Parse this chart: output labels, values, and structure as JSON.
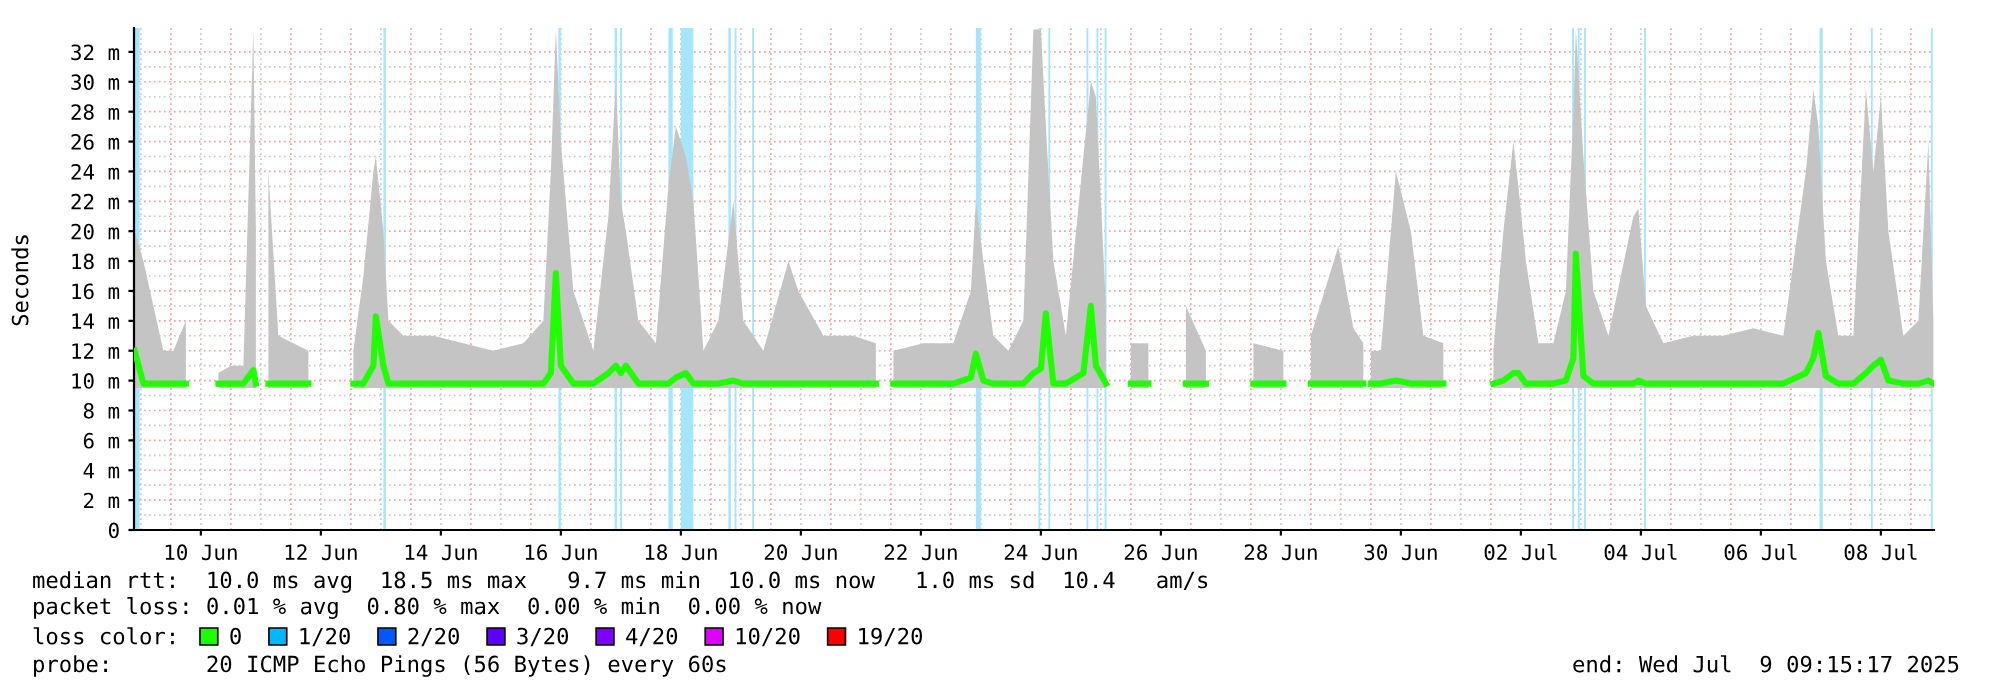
{
  "chart_data": {
    "type": "line",
    "ylabel": "Seconds",
    "xlim": [
      "2025-06-09T09:15",
      "2025-07-09T09:15"
    ],
    "xticks": [
      {
        "value": "2025-06-10T12:00",
        "label": "10 Jun"
      },
      {
        "value": "2025-06-12T12:00",
        "label": "12 Jun"
      },
      {
        "value": "2025-06-14T12:00",
        "label": "14 Jun"
      },
      {
        "value": "2025-06-16T12:00",
        "label": "16 Jun"
      },
      {
        "value": "2025-06-18T12:00",
        "label": "18 Jun"
      },
      {
        "value": "2025-06-20T12:00",
        "label": "20 Jun"
      },
      {
        "value": "2025-06-22T12:00",
        "label": "22 Jun"
      },
      {
        "value": "2025-06-24T12:00",
        "label": "24 Jun"
      },
      {
        "value": "2025-06-26T12:00",
        "label": "26 Jun"
      },
      {
        "value": "2025-06-28T12:00",
        "label": "28 Jun"
      },
      {
        "value": "2025-06-30T12:00",
        "label": "30 Jun"
      },
      {
        "value": "2025-07-02T12:00",
        "label": "02 Jul"
      },
      {
        "value": "2025-07-04T12:00",
        "label": "04 Jul"
      },
      {
        "value": "2025-07-06T12:00",
        "label": "06 Jul"
      },
      {
        "value": "2025-07-08T12:00",
        "label": "08 Jul"
      }
    ],
    "ylim": [
      0,
      33.6
    ],
    "yticks": [
      0,
      {
        "value": 2,
        "label": "2 m"
      },
      {
        "value": 4,
        "label": "4 m"
      },
      {
        "value": 6,
        "label": "6 m"
      },
      {
        "value": 8,
        "label": "8 m"
      },
      {
        "value": 10,
        "label": "10 m"
      },
      {
        "value": 12,
        "label": "12 m"
      },
      {
        "value": 14,
        "label": "14 m"
      },
      {
        "value": 16,
        "label": "16 m"
      },
      {
        "value": 18,
        "label": "18 m"
      },
      {
        "value": 20,
        "label": "20 m"
      },
      {
        "value": 22,
        "label": "22 m"
      },
      {
        "value": 24,
        "label": "24 m"
      },
      {
        "value": 26,
        "label": "26 m"
      },
      {
        "value": 28,
        "label": "28 m"
      },
      {
        "value": 30,
        "label": "30 m"
      },
      {
        "value": 32,
        "label": "32 m"
      }
    ],
    "grid": true,
    "legend": "bottom",
    "legend_title": "loss color:",
    "series": [
      {
        "name": "0",
        "color": "#20ff00",
        "x": [
          "2025-06-09T09:30",
          "2025-06-09T13:00",
          "2025-06-09T17:00",
          "2025-06-09T21:00",
          "2025-06-10T01:00",
          "2025-06-10T06:00",
          "2025-06-10T13:00",
          "2025-06-10T19:00",
          "2025-06-11T00:00",
          "2025-06-11T05:00",
          "2025-06-11T09:00",
          "2025-06-11T10:00",
          "2025-06-11T13:00",
          "2025-06-11T15:00",
          "2025-06-11T19:00",
          "2025-06-12T01:00",
          "2025-06-12T07:00",
          "2025-06-12T16:00",
          "2025-06-13T01:00",
          "2025-06-13T05:00",
          "2025-06-13T09:00",
          "2025-06-13T10:00",
          "2025-06-13T13:00",
          "2025-06-13T15:00",
          "2025-06-13T21:00",
          "2025-06-14T09:00",
          "2025-06-14T21:00",
          "2025-06-15T09:00",
          "2025-06-15T21:00",
          "2025-06-16T05:00",
          "2025-06-16T08:00",
          "2025-06-16T10:00",
          "2025-06-16T12:00",
          "2025-06-16T17:00",
          "2025-06-17T01:00",
          "2025-06-17T07:00",
          "2025-06-17T10:00",
          "2025-06-17T12:00",
          "2025-06-17T14:00",
          "2025-06-17T19:00",
          "2025-06-18T02:00",
          "2025-06-18T07:00",
          "2025-06-18T10:00",
          "2025-06-18T14:00",
          "2025-06-18T17:00",
          "2025-06-18T21:00",
          "2025-06-19T03:00",
          "2025-06-19T09:00",
          "2025-06-19T13:00",
          "2025-06-19T21:00",
          "2025-06-20T07:00",
          "2025-06-20T11:00",
          "2025-06-20T21:00",
          "2025-06-21T09:00",
          "2025-06-21T18:00",
          "2025-06-21T21:00",
          "2025-06-22T01:00",
          "2025-06-22T13:00",
          "2025-06-23T01:00",
          "2025-06-23T08:00",
          "2025-06-23T10:00",
          "2025-06-23T13:00",
          "2025-06-23T17:00",
          "2025-06-23T23:00",
          "2025-06-24T05:00",
          "2025-06-24T09:00",
          "2025-06-24T12:00",
          "2025-06-24T14:00",
          "2025-06-24T17:00",
          "2025-06-24T22:00",
          "2025-06-25T05:00",
          "2025-06-25T08:00",
          "2025-06-25T10:00",
          "2025-06-25T14:00",
          "2025-06-25T19:00",
          "2025-06-26T00:00",
          "2025-06-26T07:00",
          "2025-06-26T13:00",
          "2025-06-26T22:00",
          "2025-06-27T06:00",
          "2025-06-27T18:00",
          "2025-06-28T01:00",
          "2025-06-28T13:00",
          "2025-06-28T18:00",
          "2025-06-29T00:00",
          "2025-06-29T11:00",
          "2025-06-29T17:00",
          "2025-06-29T21:00",
          "2025-06-29T22:00",
          "2025-06-30T00:00",
          "2025-06-30T04:00",
          "2025-06-30T10:00",
          "2025-06-30T16:00",
          "2025-06-30T21:00",
          "2025-07-01T05:00",
          "2025-07-01T16:00",
          "2025-07-02T01:00",
          "2025-07-02T05:00",
          "2025-07-02T09:00",
          "2025-07-02T11:00",
          "2025-07-02T14:00",
          "2025-07-02T19:00",
          "2025-07-03T01:00",
          "2025-07-03T06:00",
          "2025-07-03T09:00",
          "2025-07-03T10:00",
          "2025-07-03T13:00",
          "2025-07-03T17:00",
          "2025-07-03T23:00",
          "2025-07-04T09:00",
          "2025-07-04T11:00",
          "2025-07-04T14:00",
          "2025-07-04T21:00",
          "2025-07-05T09:00",
          "2025-07-05T21:00",
          "2025-07-06T09:00",
          "2025-07-06T21:00",
          "2025-07-07T06:00",
          "2025-07-07T09:00",
          "2025-07-07T11:00",
          "2025-07-07T14:00",
          "2025-07-07T19:00",
          "2025-07-08T01:00",
          "2025-07-08T06:00",
          "2025-07-08T09:00",
          "2025-07-08T12:00",
          "2025-07-08T15:00",
          "2025-07-08T21:00",
          "2025-07-09T03:00",
          "2025-07-09T07:00",
          "2025-07-09T09:00"
        ],
        "values": [
          12,
          9.8,
          9.8,
          9.8,
          9.8,
          9.8,
          null,
          9.8,
          9.8,
          9.8,
          10.7,
          9.8,
          null,
          9.8,
          9.8,
          9.8,
          9.8,
          null,
          9.8,
          9.8,
          11,
          14.3,
          11,
          9.8,
          9.8,
          9.8,
          9.8,
          9.8,
          9.8,
          9.8,
          10.5,
          17.2,
          11,
          9.8,
          9.8,
          10.5,
          11,
          10.5,
          11,
          9.8,
          9.8,
          9.8,
          10.2,
          10.5,
          9.8,
          9.8,
          9.8,
          10,
          9.8,
          9.8,
          9.8,
          9.8,
          9.8,
          9.8,
          9.8,
          null,
          9.8,
          9.8,
          9.8,
          10.2,
          11.8,
          10,
          9.8,
          9.8,
          9.8,
          10.5,
          10.8,
          14.5,
          9.8,
          9.8,
          10.5,
          15,
          11,
          9.8,
          null,
          9.8,
          9.8,
          null,
          9.8,
          9.8,
          null,
          9.8,
          9.8,
          null,
          9.8,
          9.8,
          9.8,
          9.8,
          null,
          9.8,
          9.8,
          10,
          9.8,
          9.8,
          9.8,
          null,
          9.8,
          10,
          10.5,
          10.5,
          9.8,
          9.8,
          9.8,
          10,
          11.5,
          18.5,
          10.3,
          9.8,
          9.8,
          9.8,
          10,
          9.8,
          9.8,
          9.8,
          9.8,
          9.8,
          9.8,
          10.5,
          11.5,
          13.2,
          10.3,
          9.8,
          9.8,
          10.5,
          11,
          11.4,
          10,
          9.8,
          9.8,
          10,
          9.8
        ],
        "lower": [
          9.5,
          9.5,
          9.5,
          9.5,
          9.5,
          9.5,
          null,
          9.5,
          9.5,
          9.5,
          9.5,
          9.5,
          null,
          9.5,
          9.5,
          9.5,
          9.5,
          null,
          9.5,
          9.5,
          9.5,
          9.5,
          9.5,
          9.5,
          9.5,
          9.5,
          9.5,
          9.5,
          9.5,
          9.5,
          9.5,
          9.5,
          9.5,
          9.5,
          9.5,
          9.5,
          9.5,
          9.5,
          9.5,
          9.5,
          9.5,
          9.5,
          9.5,
          9.5,
          9.5,
          9.5,
          9.5,
          9.5,
          9.5,
          9.5,
          9.5,
          9.5,
          9.5,
          9.5,
          9.5,
          null,
          9.5,
          9.5,
          9.5,
          9.5,
          9.5,
          9.5,
          9.5,
          9.5,
          9.5,
          9.5,
          9.5,
          9.5,
          9.5,
          9.5,
          9.5,
          9.5,
          9.5,
          9.5,
          null,
          9.5,
          9.5,
          null,
          9.5,
          9.5,
          null,
          9.5,
          9.5,
          null,
          9.5,
          9.5,
          9.5,
          9.5,
          null,
          9.5,
          9.5,
          9.5,
          9.5,
          9.5,
          9.5,
          null,
          9.5,
          9.5,
          9.5,
          9.5,
          9.5,
          9.5,
          9.5,
          9.5,
          9.5,
          9.5,
          9.5,
          9.5,
          9.5,
          9.5,
          9.5,
          9.5,
          9.5,
          9.5,
          9.5,
          9.5,
          9.5,
          9.5,
          9.5,
          9.5,
          9.5,
          9.5,
          9.5,
          9.5,
          9.5,
          9.5,
          9.5,
          9.5,
          9.5,
          9.5,
          9.5
        ],
        "upper": [
          20,
          18,
          15,
          12,
          12,
          14,
          null,
          10.5,
          11,
          11,
          33.5,
          20,
          null,
          24,
          13,
          12.5,
          12,
          null,
          12,
          17,
          24,
          25,
          20,
          14,
          13,
          13,
          12.5,
          12,
          12.5,
          14,
          24,
          33.5,
          26,
          16,
          12,
          21,
          30,
          22,
          20,
          14,
          12.5,
          23,
          27,
          25,
          22,
          12,
          14,
          22,
          14,
          12,
          18,
          16,
          13,
          13,
          12.5,
          null,
          12,
          12.5,
          12.5,
          16,
          22,
          18,
          13,
          12,
          14,
          33.5,
          33.5,
          27,
          18,
          13,
          25,
          30,
          29,
          15,
          null,
          12.5,
          12.5,
          null,
          15,
          12,
          null,
          12.5,
          12,
          null,
          13,
          19,
          13.5,
          12.5,
          null,
          12,
          12,
          24,
          20,
          13,
          12.5,
          null,
          12,
          20,
          26,
          23,
          18,
          12.5,
          12.5,
          16,
          28,
          33.5,
          25,
          16,
          13,
          21,
          21.5,
          15,
          12.5,
          13,
          13,
          13.5,
          13,
          24,
          29.5,
          27,
          18,
          13,
          13,
          29.5,
          24,
          29,
          20,
          13,
          14,
          26,
          14
        ]
      },
      {
        "name": "1/20",
        "color": "#00b8ff"
      },
      {
        "name": "2/20",
        "color": "#0059ff"
      },
      {
        "name": "3/20",
        "color": "#5e00ff"
      },
      {
        "name": "4/20",
        "color": "#7e00ff"
      },
      {
        "name": "10/20",
        "color": "#dd00ff"
      },
      {
        "name": "19/20",
        "color": "#ff0000"
      }
    ],
    "bands": [
      {
        "axis": "x",
        "from": "2025-06-09T09:15",
        "to": "2025-06-09T11:30",
        "color": "#a6e6fc"
      },
      {
        "axis": "x",
        "from": "2025-06-13T13:00",
        "to": "2025-06-13T14:00",
        "color": "#a6e6fc"
      },
      {
        "axis": "x",
        "from": "2025-06-16T11:00",
        "to": "2025-06-16T12:00",
        "color": "#a6e6fc"
      },
      {
        "axis": "x",
        "from": "2025-06-17T09:30",
        "to": "2025-06-17T10:30",
        "color": "#a6e6fc"
      },
      {
        "axis": "x",
        "from": "2025-06-17T11:45",
        "to": "2025-06-17T12:30",
        "color": "#a6e6fc"
      },
      {
        "axis": "x",
        "from": "2025-06-18T07:00",
        "to": "2025-06-18T08:45",
        "color": "#a6e6fc"
      },
      {
        "axis": "x",
        "from": "2025-06-18T12:00",
        "to": "2025-06-18T17:00",
        "color": "#a6e6fc"
      },
      {
        "axis": "x",
        "from": "2025-06-19T07:00",
        "to": "2025-06-19T08:00",
        "color": "#a6e6fc"
      },
      {
        "axis": "x",
        "from": "2025-06-19T09:30",
        "to": "2025-06-19T10:15",
        "color": "#a6e6fc"
      },
      {
        "axis": "x",
        "from": "2025-06-19T16:30",
        "to": "2025-06-19T17:15",
        "color": "#a6e6fc"
      },
      {
        "axis": "x",
        "from": "2025-06-23T10:00",
        "to": "2025-06-23T12:00",
        "color": "#a6e6fc"
      },
      {
        "axis": "x",
        "from": "2025-06-24T11:00",
        "to": "2025-06-24T11:45",
        "color": "#a6e6fc"
      },
      {
        "axis": "x",
        "from": "2025-06-24T15:00",
        "to": "2025-06-24T15:45",
        "color": "#a6e6fc"
      },
      {
        "axis": "x",
        "from": "2025-06-25T06:15",
        "to": "2025-06-25T07:00",
        "color": "#a6e6fc"
      },
      {
        "axis": "x",
        "from": "2025-06-25T10:15",
        "to": "2025-06-25T11:00",
        "color": "#a6e6fc"
      },
      {
        "axis": "x",
        "from": "2025-06-25T13:30",
        "to": "2025-06-25T14:15",
        "color": "#a6e6fc"
      },
      {
        "axis": "x",
        "from": "2025-07-03T08:30",
        "to": "2025-07-03T09:15",
        "color": "#a6e6fc"
      },
      {
        "axis": "x",
        "from": "2025-07-03T10:45",
        "to": "2025-07-03T11:30",
        "color": "#a6e6fc"
      },
      {
        "axis": "x",
        "from": "2025-07-03T13:15",
        "to": "2025-07-03T14:00",
        "color": "#a6e6fc"
      },
      {
        "axis": "x",
        "from": "2025-07-04T13:15",
        "to": "2025-07-04T14:00",
        "color": "#a6e6fc"
      },
      {
        "axis": "x",
        "from": "2025-07-07T11:30",
        "to": "2025-07-07T12:45",
        "color": "#a6e6fc"
      },
      {
        "axis": "x",
        "from": "2025-07-08T08:00",
        "to": "2025-07-08T08:45",
        "color": "#a6e6fc"
      },
      {
        "axis": "x",
        "from": "2025-07-09T08:00",
        "to": "2025-07-09T08:45",
        "color": "#a6e6fc"
      }
    ],
    "annotations": [
      "median rtt:  10.0 ms avg  18.5 ms max   9.7 ms min  10.0 ms now   1.0 ms sd  10.4   am/s",
      "packet loss: 0.01 % avg  0.80 % max  0.00 % min  0.00 % now",
      "probe:       20 ICMP Echo Pings (56 Bytes) every 60s",
      "end: Wed Jul  9 09:15:17 2025"
    ]
  }
}
